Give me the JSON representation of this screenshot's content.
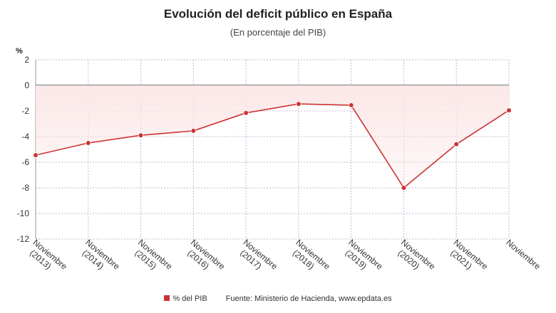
{
  "chart_data": {
    "type": "line",
    "title": "Evolución del deficit público en España",
    "subtitle": "(En porcentaje del PIB)",
    "y_unit": "%",
    "ylim": [
      -12,
      2
    ],
    "y_ticks": [
      2,
      0,
      -2,
      -4,
      -6,
      -8,
      -10,
      -12
    ],
    "categories": [
      [
        "Noviembre",
        "(2013)"
      ],
      [
        "Noviembre",
        "(2014)"
      ],
      [
        "Noviembre",
        "(2015)"
      ],
      [
        "Noviembre",
        "(2016)"
      ],
      [
        "Noviembre",
        "(2017)"
      ],
      [
        "Noviembre",
        "(2018)"
      ],
      [
        "Noviembre",
        "(2019)"
      ],
      [
        "Noviembre",
        "(2020)"
      ],
      [
        "Noviembre",
        "(2021)"
      ],
      [
        "Noviembre"
      ]
    ],
    "series": [
      {
        "name": "% del PIB",
        "values": [
          -5.45,
          -4.5,
          -3.9,
          -3.55,
          -2.15,
          -1.45,
          -1.55,
          -8.0,
          -4.6,
          -1.95
        ]
      }
    ],
    "colors": {
      "series": "#cc3333",
      "fill": "#fbe6e6",
      "grid": "#c9b3d6",
      "zero_line": "#333333"
    },
    "legend": {
      "label": "% del PIB",
      "position": "bottom"
    },
    "source": "Fuente: Ministerio de Hacienda, www.epdata.es"
  }
}
